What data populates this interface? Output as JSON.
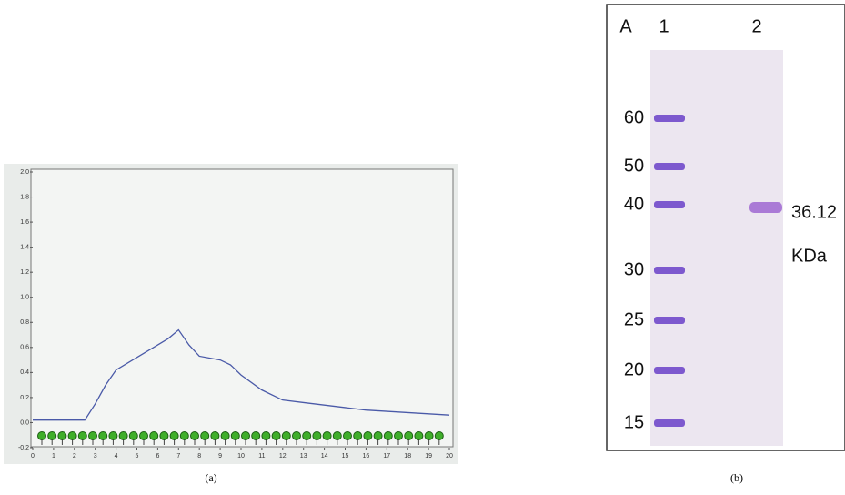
{
  "chart_data": {
    "type": "line",
    "caption": "(a)",
    "x": [
      0,
      2.5,
      3,
      3.5,
      4,
      5,
      6,
      6.5,
      7,
      7.5,
      8,
      9,
      9.5,
      10,
      11,
      12,
      13,
      14,
      15,
      16,
      17,
      18,
      19,
      20
    ],
    "series": [
      {
        "color": "#4a5aa8",
        "values": [
          0.02,
          0.02,
          0.15,
          0.3,
          0.42,
          0.52,
          0.62,
          0.67,
          0.74,
          0.62,
          0.53,
          0.5,
          0.46,
          0.38,
          0.26,
          0.18,
          0.16,
          0.14,
          0.12,
          0.1,
          0.09,
          0.08,
          0.07,
          0.06
        ]
      }
    ],
    "xlim": [
      0,
      20
    ],
    "ylim": [
      -0.2,
      2.0
    ],
    "xticks": [
      0,
      1,
      2,
      3,
      4,
      5,
      6,
      7,
      8,
      9,
      10,
      11,
      12,
      13,
      14,
      15,
      16,
      17,
      18,
      19,
      20
    ],
    "yticks": [
      {
        "value": 2,
        "label": "2.0"
      },
      1.8,
      1.6,
      1.4,
      1.2,
      {
        "value": 1,
        "label": "1.0"
      },
      0.8,
      0.6,
      0.4,
      0.2,
      {
        "value": 0,
        "label": "0.0"
      },
      -0.2
    ]
  },
  "gel": {
    "corner_label": "A",
    "lane_labels": [
      "1",
      "2"
    ],
    "ladder": [
      60,
      50,
      40,
      30,
      25,
      20,
      15
    ],
    "band_value": 36.12,
    "band_unit": "KDa",
    "caption": "(b)"
  }
}
